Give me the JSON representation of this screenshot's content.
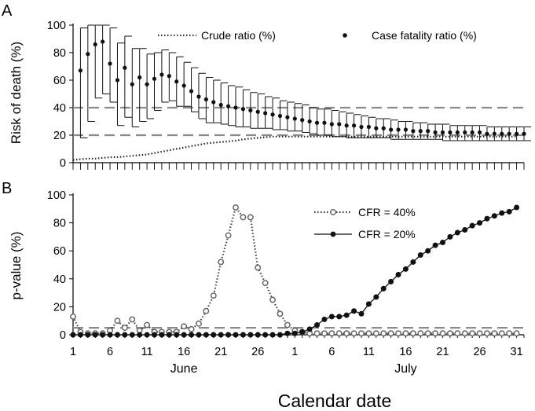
{
  "chart_data": [
    {
      "panel": "A",
      "type": "scatter",
      "ylabel": "Risk of death (%)",
      "ylim": [
        0,
        100
      ],
      "yticks": [
        0,
        20,
        40,
        60,
        80,
        100
      ],
      "xticks": [
        {
          "label": "1",
          "day": 1
        },
        {
          "label": "6",
          "day": 6
        },
        {
          "label": "11",
          "day": 11
        },
        {
          "label": "16",
          "day": 16
        },
        {
          "label": "21",
          "day": 21
        },
        {
          "label": "26",
          "day": 26
        },
        {
          "label": "1",
          "day": 31
        },
        {
          "label": "6",
          "day": 36
        },
        {
          "label": "11",
          "day": 41
        },
        {
          "label": "16",
          "day": 46
        },
        {
          "label": "21",
          "day": 51
        },
        {
          "label": "26",
          "day": 56
        },
        {
          "label": "31",
          "day": 61
        }
      ],
      "reference_lines": [
        20,
        40
      ],
      "legend_placement": "top",
      "series": [
        {
          "name": "Crude ratio (%)",
          "style": "dotted",
          "day": [
            1,
            2,
            3,
            4,
            5,
            6,
            7,
            8,
            9,
            10,
            11,
            12,
            13,
            14,
            15,
            16,
            17,
            18,
            19,
            20,
            21,
            22,
            23,
            24,
            25,
            26,
            27,
            28,
            29,
            30,
            31,
            32,
            33,
            34,
            35,
            36,
            37,
            38,
            39,
            40,
            41,
            42,
            43,
            44,
            45,
            46,
            47,
            48,
            49,
            50,
            51,
            52,
            53,
            54,
            55,
            56,
            57,
            58,
            59,
            60,
            61
          ],
          "values": [
            2,
            2.5,
            3,
            3,
            3.5,
            4,
            4,
            4.5,
            5,
            5.5,
            6,
            7,
            8,
            9,
            10,
            11,
            12,
            13,
            14,
            14.5,
            15,
            15.5,
            16,
            17,
            17.5,
            18,
            18.5,
            19,
            19,
            19,
            19,
            19,
            19,
            19,
            19,
            19,
            19,
            19,
            19,
            19,
            19,
            19,
            19,
            19,
            19,
            19,
            19,
            19,
            19,
            19,
            19,
            19,
            19,
            19,
            19,
            19,
            19,
            19,
            19,
            19,
            19
          ]
        },
        {
          "name": "Case fatality ratio (%)",
          "style": "points-with-error-bars",
          "day": [
            2,
            3,
            4,
            5,
            6,
            7,
            8,
            9,
            10,
            11,
            12,
            13,
            14,
            15,
            16,
            17,
            18,
            19,
            20,
            21,
            22,
            23,
            24,
            25,
            26,
            27,
            28,
            29,
            30,
            31,
            32,
            33,
            34,
            35,
            36,
            37,
            38,
            39,
            40,
            41,
            42,
            43,
            44,
            45,
            46,
            47,
            48,
            49,
            50,
            51,
            52,
            53,
            54,
            55,
            56,
            57,
            58,
            59,
            60,
            61,
            62
          ],
          "values": [
            67,
            79,
            86,
            88,
            72,
            60,
            69,
            57,
            62,
            57,
            61,
            64,
            63,
            59,
            56,
            52,
            48,
            46,
            44,
            42,
            41,
            40,
            39,
            38,
            37,
            36,
            35,
            34,
            33,
            32,
            31,
            30,
            29,
            29,
            28,
            28,
            27,
            27,
            26,
            26,
            25,
            25,
            24,
            24,
            24,
            23,
            23,
            23,
            22,
            22,
            22,
            22,
            22,
            22,
            22,
            21,
            21,
            21,
            21,
            21,
            21
          ],
          "upper": [
            98,
            100,
            100,
            100,
            98,
            87,
            92,
            83,
            83,
            79,
            80,
            82,
            80,
            77,
            73,
            69,
            65,
            62,
            60,
            58,
            56,
            55,
            53,
            51,
            50,
            48,
            47,
            45,
            44,
            43,
            42,
            40,
            39,
            39,
            38,
            37,
            36,
            35,
            34,
            33,
            32,
            32,
            31,
            30,
            30,
            29,
            29,
            28,
            28,
            28,
            27,
            27,
            27,
            27,
            27,
            26,
            26,
            26,
            26,
            26,
            26
          ],
          "lower": [
            18,
            30,
            47,
            50,
            44,
            27,
            33,
            26,
            30,
            32,
            38,
            44,
            45,
            41,
            41,
            37,
            32,
            29,
            29,
            28,
            27,
            26,
            26,
            25,
            25,
            25,
            24,
            24,
            23,
            23,
            22,
            21,
            20,
            20,
            19,
            19,
            18,
            18,
            18,
            18,
            18,
            18,
            17,
            17,
            17,
            17,
            17,
            17,
            17,
            16,
            16,
            16,
            16,
            16,
            16,
            16,
            16,
            16,
            16,
            16,
            16
          ]
        }
      ]
    },
    {
      "panel": "B",
      "type": "line",
      "ylabel": "p-value  (%)",
      "ylim": [
        0,
        100
      ],
      "yticks": [
        0,
        20,
        40,
        60,
        80,
        100
      ],
      "reference_lines": [
        5
      ],
      "legend_placement": "top-right",
      "month_labels": [
        {
          "label": "June",
          "day": 16
        },
        {
          "label": "July",
          "day": 46
        }
      ],
      "xlabel": "Calendar date",
      "series": [
        {
          "name": "CFR = 40%",
          "style": "dotted-open-circles",
          "day": [
            1,
            2,
            3,
            4,
            5,
            6,
            7,
            8,
            9,
            10,
            11,
            12,
            13,
            14,
            15,
            16,
            17,
            18,
            19,
            20,
            21,
            22,
            23,
            24,
            25,
            26,
            27,
            28,
            29,
            30,
            31,
            32,
            33,
            34,
            35,
            36,
            37,
            38,
            39,
            40,
            41,
            42,
            43,
            44,
            45,
            46,
            47,
            48,
            49,
            50,
            51,
            52,
            53,
            54,
            55,
            56,
            57,
            58,
            59,
            60,
            61
          ],
          "values": [
            13,
            2,
            1,
            1,
            1,
            3,
            10,
            5,
            11,
            3,
            7,
            2,
            2,
            2,
            2,
            6,
            4,
            8,
            17,
            28,
            52,
            71,
            91,
            84,
            84,
            48,
            37,
            25,
            15,
            7,
            3,
            2,
            1,
            1,
            1,
            1,
            1,
            1,
            1,
            1,
            1,
            1,
            1,
            1,
            1,
            1,
            1,
            1,
            1,
            1,
            1,
            1,
            1,
            1,
            1,
            1,
            1,
            1,
            1,
            1,
            1
          ]
        },
        {
          "name": "CFR = 20%",
          "style": "solid-filled-circles",
          "day": [
            1,
            2,
            3,
            4,
            5,
            6,
            7,
            8,
            9,
            10,
            11,
            12,
            13,
            14,
            15,
            16,
            17,
            18,
            19,
            20,
            21,
            22,
            23,
            24,
            25,
            26,
            27,
            28,
            29,
            30,
            31,
            32,
            33,
            34,
            35,
            36,
            37,
            38,
            39,
            40,
            41,
            42,
            43,
            44,
            45,
            46,
            47,
            48,
            49,
            50,
            51,
            52,
            53,
            54,
            55,
            56,
            57,
            58,
            59,
            60,
            61
          ],
          "values": [
            0,
            0,
            0,
            0,
            0,
            0,
            0,
            0,
            0,
            0,
            0,
            0,
            0,
            0,
            0,
            0,
            0,
            0,
            0,
            0,
            0,
            0,
            0,
            0,
            0,
            0,
            0,
            0,
            0,
            1,
            1,
            2,
            4,
            7,
            11,
            13,
            13,
            14,
            17,
            15,
            22,
            27,
            33,
            38,
            43,
            47,
            52,
            57,
            60,
            64,
            66,
            70,
            73,
            75,
            78,
            80,
            83,
            85,
            87,
            88,
            91
          ]
        }
      ]
    }
  ]
}
